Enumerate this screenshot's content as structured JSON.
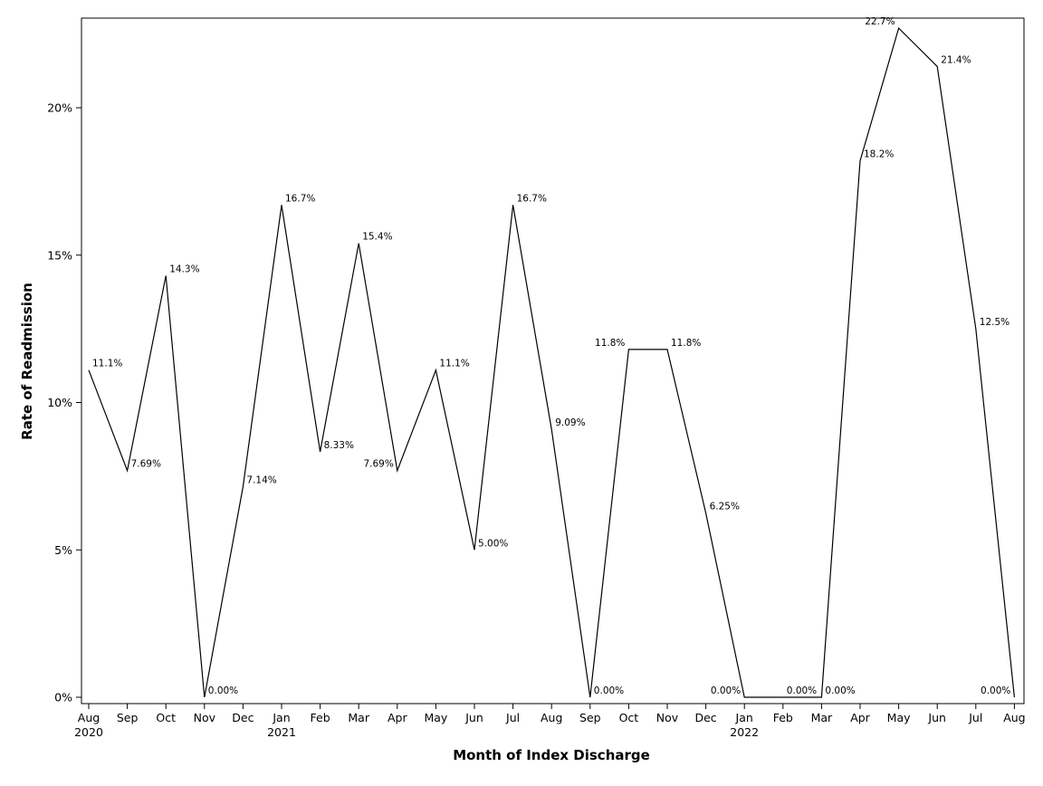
{
  "chart_data": {
    "type": "line",
    "title": "",
    "xlabel": "Month of Index Discharge",
    "ylabel": "Rate of Readmission",
    "ylim": [
      0,
      22.7
    ],
    "yticks": [
      0,
      5,
      10,
      15,
      20
    ],
    "ytick_labels": [
      "0%",
      "5%",
      "10%",
      "15%",
      "20%"
    ],
    "grid": false,
    "legend": "none",
    "line_color": "#000000",
    "categories": [
      "Aug",
      "Sep",
      "Oct",
      "Nov",
      "Dec",
      "Jan",
      "Feb",
      "Mar",
      "Apr",
      "May",
      "Jun",
      "Jul",
      "Aug",
      "Sep",
      "Oct",
      "Nov",
      "Dec",
      "Jan",
      "Feb",
      "Mar",
      "Apr",
      "May",
      "Jun",
      "Jul",
      "Aug"
    ],
    "category_years": [
      "2020",
      "",
      "",
      "",
      "",
      "2021",
      "",
      "",
      "",
      "",
      "",
      "",
      "",
      "",
      "",
      "",
      "",
      "2022",
      "",
      "",
      "",
      "",
      "",
      "",
      ""
    ],
    "values": [
      11.1,
      7.69,
      14.3,
      0.0,
      7.14,
      16.7,
      8.33,
      15.4,
      7.69,
      11.1,
      5.0,
      16.7,
      9.09,
      0.0,
      11.8,
      11.8,
      6.25,
      0.0,
      0.0,
      0.0,
      18.2,
      22.7,
      21.4,
      12.5,
      0.0
    ],
    "data_labels": [
      "11.1%",
      "7.69%",
      "14.3%",
      "0.00%",
      "7.14%",
      "16.7%",
      "8.33%",
      "15.4%",
      "7.69%",
      "11.1%",
      "5.00%",
      "16.7%",
      "9.09%",
      "0.00%",
      "11.8%",
      "11.8%",
      "6.25%",
      "0.00%",
      "0.00%",
      "0.00%",
      "18.2%",
      "22.7%",
      "21.4%",
      "12.5%",
      "0.00%"
    ]
  }
}
